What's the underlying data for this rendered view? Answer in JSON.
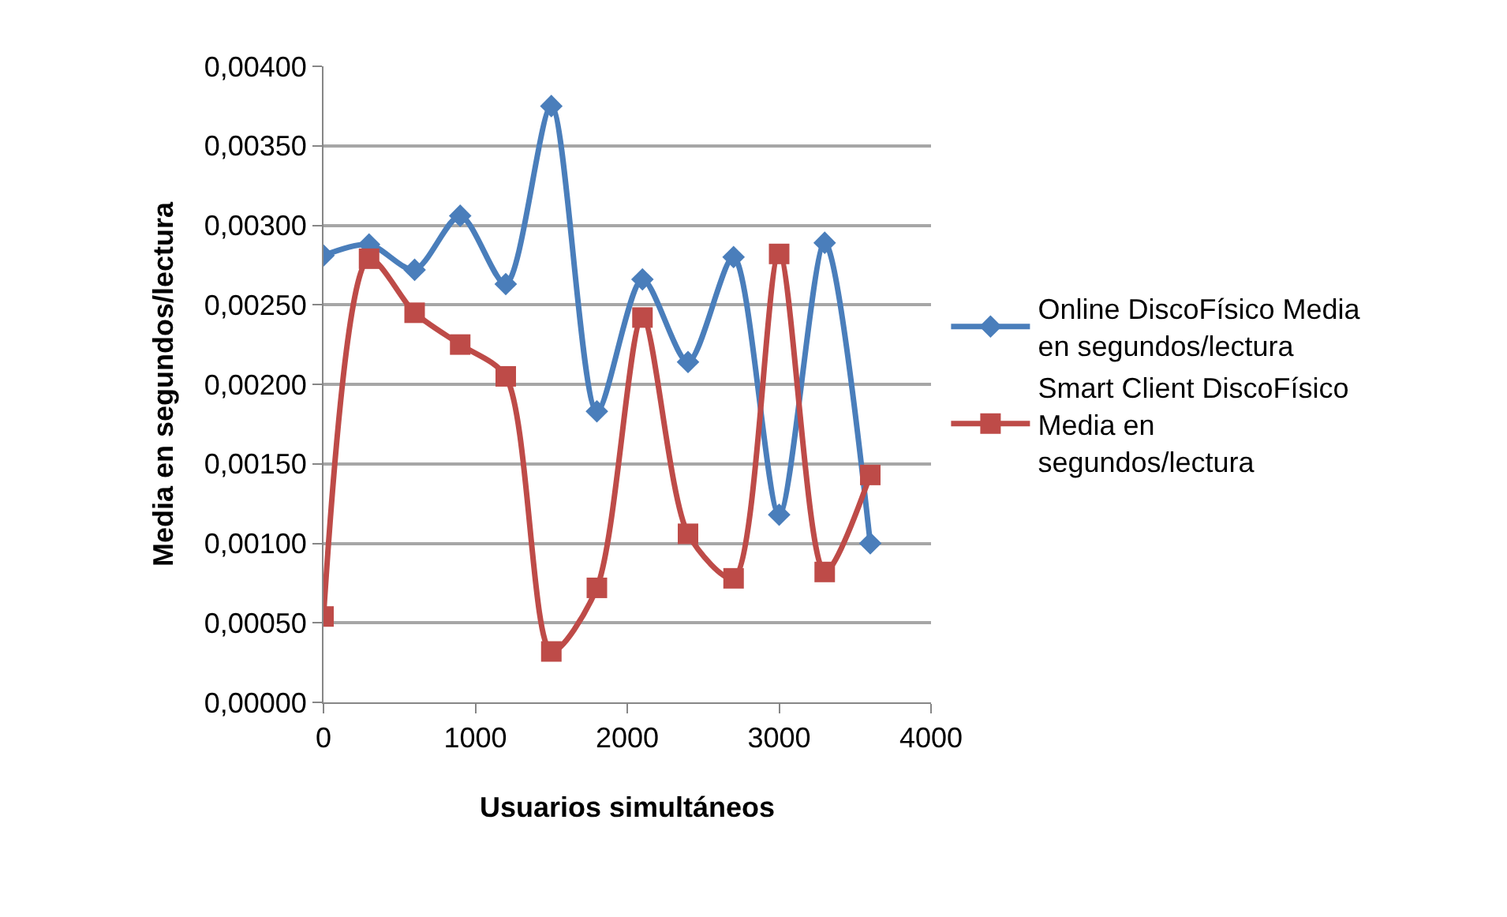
{
  "chart_data": {
    "type": "line",
    "xlabel": "Usuarios simultáneos",
    "ylabel": "Media en segundos/lectura",
    "x": [
      0,
      300,
      600,
      900,
      1200,
      1500,
      1800,
      2100,
      2400,
      2700,
      3000,
      3300,
      3600
    ],
    "series": [
      {
        "name": "Online DiscoFísico Media en segundos/lectura",
        "color": "#4a7ebb",
        "marker": "diamond",
        "values": [
          0.00281,
          0.00288,
          0.00272,
          0.00306,
          0.00263,
          0.00375,
          0.00183,
          0.00266,
          0.00214,
          0.0028,
          0.00118,
          0.00289,
          0.001
        ]
      },
      {
        "name": "Smart Client DiscoFísico Media en segundos/lectura",
        "color": "#be4b48",
        "marker": "square",
        "values": [
          0.00054,
          0.00279,
          0.00245,
          0.00225,
          0.00205,
          0.00032,
          0.00072,
          0.00242,
          0.00106,
          0.00078,
          0.00282,
          0.00082,
          0.00143
        ]
      }
    ],
    "xlim": [
      0,
      4000
    ],
    "xticks": [
      0,
      1000,
      2000,
      3000,
      4000
    ],
    "ylim": [
      0,
      0.004
    ],
    "yticks": [
      {
        "value": 0,
        "label": "0,00000"
      },
      {
        "value": 0.0005,
        "label": "0,00050"
      },
      {
        "value": 0.001,
        "label": "0,00100"
      },
      {
        "value": 0.0015,
        "label": "0,00150"
      },
      {
        "value": 0.002,
        "label": "0,00200"
      },
      {
        "value": 0.0025,
        "label": "0,00250"
      },
      {
        "value": 0.003,
        "label": "0,00300"
      },
      {
        "value": 0.0035,
        "label": "0,00350"
      },
      {
        "value": 0.004,
        "label": "0,00400"
      }
    ],
    "grid": "y",
    "legend": "right",
    "line_style": "solid"
  }
}
